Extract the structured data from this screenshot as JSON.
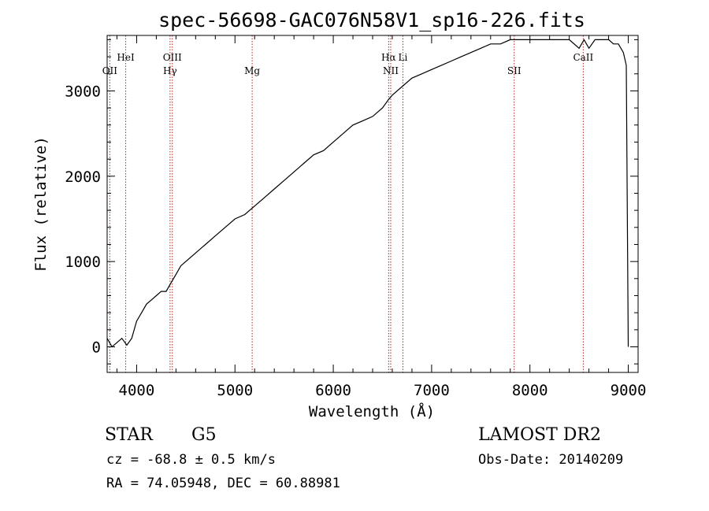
{
  "chart_data": {
    "type": "line",
    "title": "spec-56698-GAC076N58V1_sp16-226.fits",
    "xlabel": "Wavelength (Å)",
    "ylabel": "Flux (relative)",
    "xlim": [
      3700,
      9100
    ],
    "ylim": [
      -300,
      3650
    ],
    "x_ticks": [
      4000,
      5000,
      6000,
      7000,
      8000,
      9000
    ],
    "y_ticks": [
      0,
      1000,
      2000,
      3000
    ],
    "grid": false,
    "series": [
      {
        "x": [
          3700,
          3750,
          3800,
          3850,
          3900,
          3950,
          4000,
          4050,
          4100,
          4150,
          4200,
          4250,
          4300,
          4350,
          4400,
          4450,
          4500,
          4600,
          4700,
          4800,
          4900,
          5000,
          5100,
          5200,
          5300,
          5400,
          5500,
          5600,
          5700,
          5800,
          5900,
          6000,
          6100,
          6200,
          6300,
          6400,
          6500,
          6563,
          6600,
          6700,
          6800,
          6900,
          7000,
          7100,
          7200,
          7300,
          7400,
          7500,
          7600,
          7700,
          7800,
          7900,
          8000,
          8100,
          8200,
          8300,
          8400,
          8500,
          8550,
          8600,
          8662,
          8700,
          8750,
          8800,
          8850,
          8900,
          8950,
          8980,
          9000
        ],
        "y": [
          100,
          0,
          50,
          100,
          20,
          100,
          300,
          400,
          500,
          550,
          600,
          650,
          650,
          750,
          850,
          950,
          1000,
          1100,
          1200,
          1300,
          1400,
          1500,
          1550,
          1650,
          1750,
          1850,
          1950,
          2050,
          2150,
          2250,
          2300,
          2400,
          2500,
          2600,
          2650,
          2700,
          2800,
          2900,
          2950,
          3050,
          3150,
          3200,
          3250,
          3300,
          3350,
          3400,
          3450,
          3500,
          3550,
          3550,
          3600,
          3600,
          3600,
          3600,
          3600,
          3600,
          3600,
          3500,
          3600,
          3500,
          3600,
          3600,
          3600,
          3600,
          3550,
          3550,
          3450,
          3300,
          0
        ]
      }
    ],
    "annotations": [
      {
        "label": "OII",
        "x": 3727
      },
      {
        "label": "HeI",
        "x": 3889
      },
      {
        "label": "Hγ",
        "x": 4340
      },
      {
        "label": "OIII",
        "x": 4363
      },
      {
        "label": "Mg",
        "x": 5175
      },
      {
        "label": "Hα",
        "x": 6563
      },
      {
        "label": "NII",
        "x": 6584
      },
      {
        "label": "Li",
        "x": 6708
      },
      {
        "label": "SII",
        "x": 7840
      },
      {
        "label": "CaII",
        "x": 8542
      }
    ]
  },
  "info": {
    "class": "STAR",
    "subclass": "G5",
    "survey": "LAMOST DR2",
    "cz": "cz = -68.8 ± 0.5 km/s",
    "obs_date": "Obs-Date: 20140209",
    "coords": "RA =  74.05948, DEC =  60.88981"
  },
  "colors": {
    "spectrum": "#000000",
    "line_markers": "#b22222"
  }
}
